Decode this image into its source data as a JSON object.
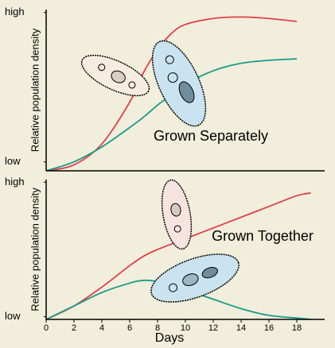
{
  "chart_data": [
    {
      "type": "line",
      "y_label": "Relative population density",
      "annotation": "Grown Separately",
      "x": [
        0,
        2,
        4,
        6,
        7,
        8,
        9,
        10,
        12,
        14,
        16,
        18
      ],
      "xlim": [
        0,
        20
      ],
      "ylim": [
        -6,
        102
      ],
      "yticks": [
        {
          "value": 100,
          "label": "high"
        },
        {
          "value": 0,
          "label": "low"
        }
      ],
      "series": [
        {
          "color": "#e0404a",
          "values": [
            -6,
            -2,
            12,
            40,
            60,
            75,
            86,
            92,
            96,
            97,
            96,
            94
          ]
        },
        {
          "color": "#1a9a8c",
          "values": [
            -6,
            0,
            10,
            23,
            30,
            38,
            45,
            52,
            61,
            66,
            68,
            69
          ]
        }
      ]
    },
    {
      "type": "line",
      "y_label": "Relative population density",
      "annotation": "Grown Together",
      "x_label": "Days",
      "x": [
        0,
        2,
        4,
        6,
        7,
        8,
        10,
        12,
        14,
        16,
        18,
        19
      ],
      "xlim": [
        0,
        20
      ],
      "ylim": [
        -2,
        102
      ],
      "xticks": [
        0,
        2,
        4,
        6,
        8,
        10,
        12,
        14,
        16,
        18
      ],
      "yticks": [
        {
          "value": 100,
          "label": "high"
        },
        {
          "value": 0,
          "label": "low"
        }
      ],
      "series": [
        {
          "color": "#e0404a",
          "values": [
            -2,
            8,
            22,
            38,
            45,
            50,
            58,
            66,
            74,
            82,
            90,
            92
          ]
        },
        {
          "color": "#1a9a8c",
          "values": [
            -2,
            8,
            18,
            25,
            27,
            26,
            20,
            13,
            6,
            1,
            -1,
            -2
          ]
        }
      ]
    }
  ]
}
